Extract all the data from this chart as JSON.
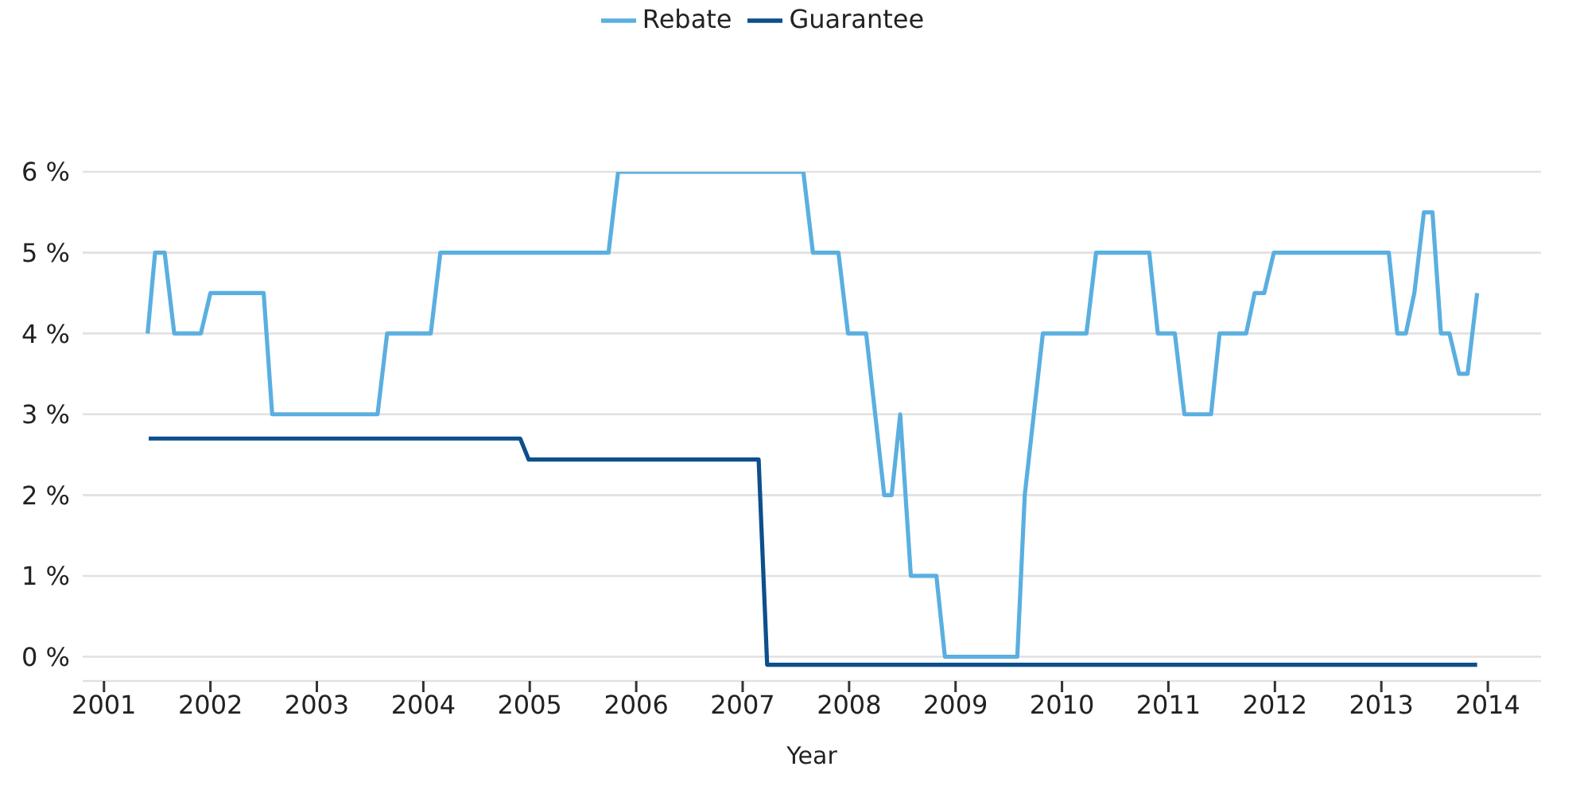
{
  "chart_data": {
    "type": "line",
    "xlabel": "Year",
    "xlim": [
      2000.8,
      2014.5
    ],
    "xticks": [
      2001,
      2002,
      2003,
      2004,
      2005,
      2006,
      2007,
      2008,
      2009,
      2010,
      2011,
      2012,
      2013,
      2014
    ],
    "ylim": [
      -0.3,
      6
    ],
    "yticks": [
      {
        "value": 0,
        "label": "0 %"
      },
      {
        "value": 1,
        "label": "1 %"
      },
      {
        "value": 2,
        "label": "2 %"
      },
      {
        "value": 3,
        "label": "3 %"
      },
      {
        "value": 4,
        "label": "4 %"
      },
      {
        "value": 5,
        "label": "5 %"
      },
      {
        "value": 6,
        "label": "6 %"
      }
    ],
    "grid": "y",
    "legend": "top",
    "marker": "none",
    "line_style": "solid",
    "series": [
      {
        "name": "Rebate",
        "color": "#5aafe0",
        "x": [
          2001.41,
          2001.48,
          2001.57,
          2001.66,
          2001.91,
          2002.0,
          2002.5,
          2002.58,
          2003.57,
          2003.66,
          2004.07,
          2004.16,
          2005.74,
          2005.83,
          2007.57,
          2007.66,
          2007.9,
          2007.99,
          2008.16,
          2008.33,
          2008.4,
          2008.48,
          2008.58,
          2008.82,
          2008.9,
          2009.58,
          2009.65,
          2009.82,
          2010.23,
          2010.32,
          2010.82,
          2010.9,
          2011.06,
          2011.15,
          2011.4,
          2011.48,
          2011.73,
          2011.81,
          2011.9,
          2011.99,
          2013.07,
          2013.15,
          2013.23,
          2013.31,
          2013.4,
          2013.48,
          2013.56,
          2013.64,
          2013.73,
          2013.81,
          2013.9
        ],
        "values": [
          4,
          5,
          5,
          4,
          4,
          4.5,
          4.5,
          3,
          3,
          4,
          4,
          5,
          5,
          6,
          6,
          5,
          5,
          4,
          4,
          2,
          2,
          3,
          1,
          1,
          0,
          0,
          2,
          4,
          4,
          5,
          5,
          4,
          4,
          3,
          3,
          4,
          4,
          4.5,
          4.5,
          5,
          5,
          4,
          4,
          4.5,
          5.5,
          5.5,
          4,
          4,
          3.5,
          3.5,
          4.5
        ]
      },
      {
        "name": "Guarantee",
        "color": "#0d4f8b",
        "x": [
          2001.42,
          2004.91,
          2004.99,
          2007.15,
          2007.23,
          2013.9
        ],
        "values": [
          2.7,
          2.7,
          2.44,
          2.44,
          -0.1,
          -0.1
        ]
      }
    ]
  }
}
